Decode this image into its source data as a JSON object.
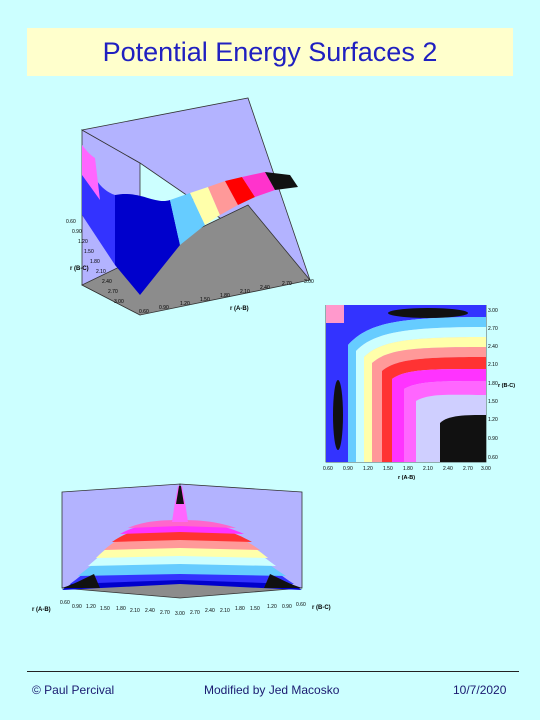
{
  "slide": {
    "title": "Potential Energy Surfaces 2",
    "footer": {
      "left": "© Paul Percival",
      "center": "Modified by Jed Macosko",
      "right": "10/7/2020"
    }
  },
  "surface_plot": {
    "axis_bc_label": "r (B-C)",
    "axis_ab_label": "r (A-B)",
    "ticks_bc": [
      "0.60",
      "0.90",
      "1.20",
      "1.50",
      "1.80",
      "2.10",
      "2.40",
      "2.70",
      "3.00"
    ],
    "ticks_ab": [
      "0.60",
      "0.90",
      "1.20",
      "1.50",
      "1.80",
      "2.10",
      "2.40",
      "2.70",
      "3.00"
    ]
  },
  "contour_plot": {
    "axis_bc_label": "r (B-C)",
    "axis_ab_label": "r (A-B)",
    "ticks_x": [
      "0.60",
      "0.90",
      "1.20",
      "1.50",
      "1.80",
      "2.10",
      "2.40",
      "2.70",
      "3.00"
    ],
    "ticks_y": [
      "0.60",
      "0.90",
      "1.20",
      "1.50",
      "1.80",
      "2.10",
      "2.40",
      "2.70",
      "3.00"
    ]
  },
  "side_plot": {
    "axis_ab_label": "r (A-B)",
    "axis_bc_label": "r (B-C)",
    "ticks": [
      "0.60",
      "0.90",
      "1.20",
      "1.50",
      "1.80",
      "2.10",
      "2.40",
      "2.70",
      "3.00",
      "2.70",
      "2.40",
      "2.10",
      "1.80",
      "1.50",
      "1.20",
      "0.90",
      "0.60"
    ]
  }
}
